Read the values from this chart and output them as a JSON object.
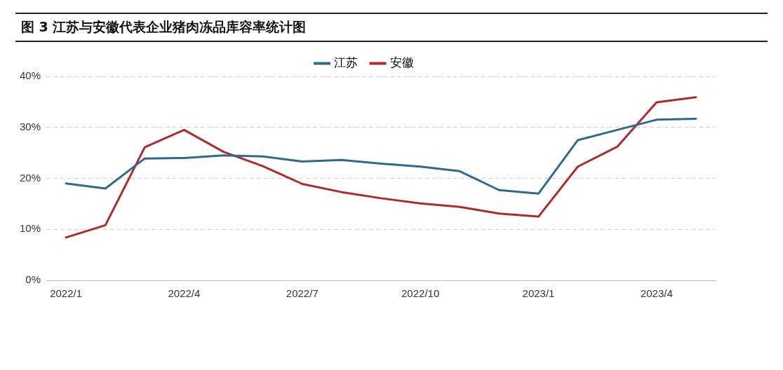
{
  "chart_data": {
    "type": "line",
    "title": "图 3 江苏与安徽代表企业猪肉冻品库容率统计图",
    "categories": [
      "2022/1",
      null,
      null,
      "2022/4",
      null,
      null,
      "2022/7",
      null,
      null,
      "2022/10",
      null,
      null,
      "2023/1",
      null,
      null,
      "2023/4",
      null
    ],
    "series": [
      {
        "name": "江苏",
        "color": "#2e6a8e",
        "values": [
          19.0,
          18.0,
          23.9,
          24.0,
          24.5,
          24.3,
          23.3,
          23.6,
          22.9,
          22.3,
          21.4,
          17.7,
          17.0,
          27.5,
          29.5,
          31.5,
          31.7
        ]
      },
      {
        "name": "安徽",
        "color": "#b02a2a",
        "values": [
          8.4,
          10.8,
          26.1,
          29.5,
          25.2,
          22.4,
          18.9,
          17.3,
          16.1,
          15.1,
          14.4,
          13.1,
          12.5,
          22.3,
          26.2,
          34.9,
          35.9
        ]
      }
    ],
    "ylim": [
      0,
      40
    ],
    "yticks": [
      {
        "value": 0,
        "label": "0%"
      },
      {
        "value": 10,
        "label": "10%"
      },
      {
        "value": 20,
        "label": "20%"
      },
      {
        "value": 30,
        "label": "30%"
      },
      {
        "value": 40,
        "label": "40%"
      }
    ],
    "grid": "y",
    "legend": "top",
    "marker": "none",
    "line_style": "solid"
  }
}
